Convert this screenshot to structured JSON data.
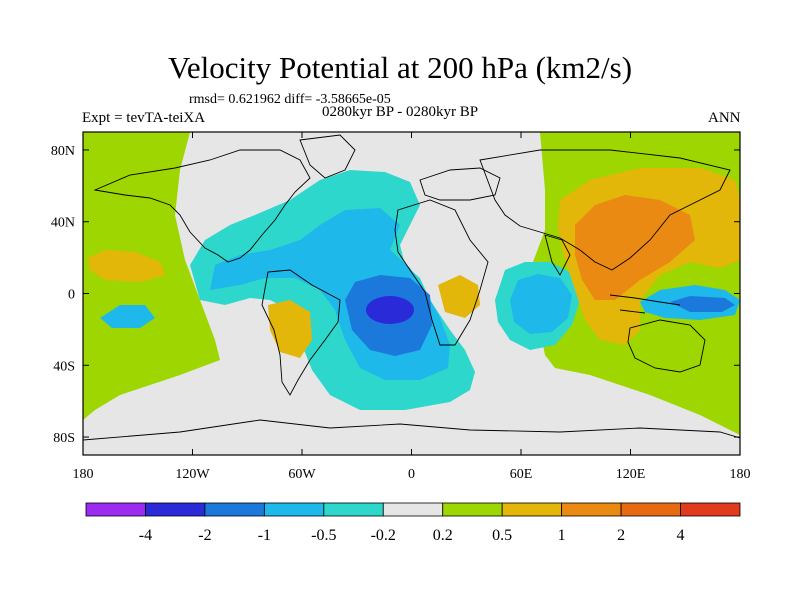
{
  "title": "Velocity Potential at 200 hPa (km2/s)",
  "stats": "rmsd= 0.621962 diff= -3.58665e-05",
  "experiment": "Expt = tevTA-teiXA",
  "period": "0280kyr BP - 0280kyr BP",
  "season": "ANN",
  "map": {
    "ocean_fill": "#9dd600",
    "land_line": "#000000",
    "x_ticks": [
      "180",
      "120W",
      "60W",
      "0",
      "60E",
      "120E",
      "180"
    ],
    "y_ticks": [
      "80N",
      "40N",
      "0",
      "40S",
      "80S"
    ]
  },
  "colorbar": {
    "colors": [
      "#9c2bf2",
      "#2a2ad8",
      "#1c79dc",
      "#1fb8ea",
      "#2ed7cc",
      "#e6e6e6",
      "#9dd600",
      "#e3b60a",
      "#ea8a12",
      "#e86a10",
      "#e23a1f"
    ],
    "labels": [
      "-4",
      "-2",
      "-1",
      "-0.5",
      "-0.2",
      "0.2",
      "0.5",
      "1",
      "2",
      "4"
    ]
  }
}
